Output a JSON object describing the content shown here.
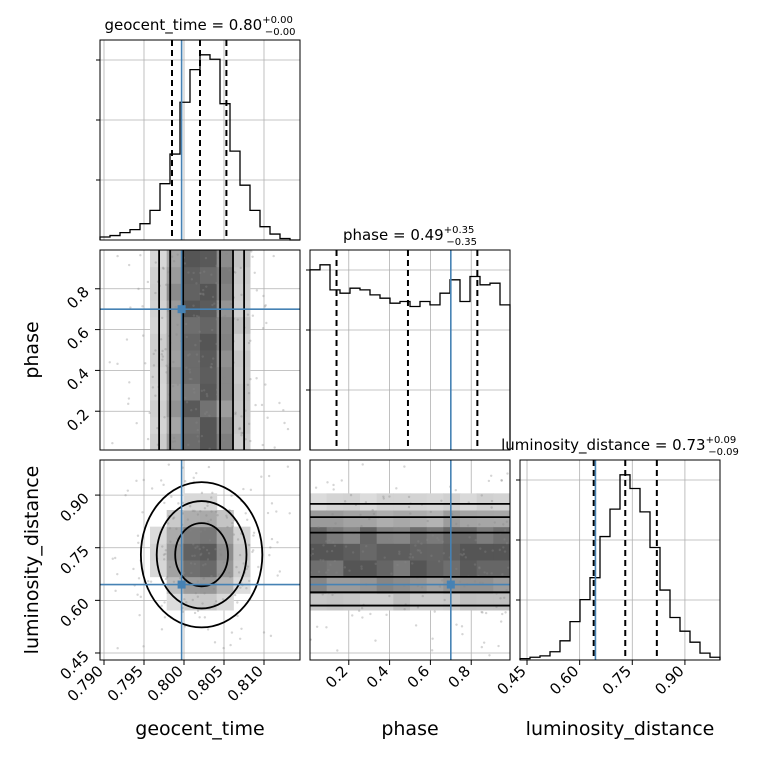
{
  "chart_data": {
    "type": "scatter",
    "subtype": "corner_plot",
    "parameters": [
      "geocent_time",
      "phase",
      "luminosity_distance"
    ],
    "axis_labels": {
      "geocent_time": "geocent_time",
      "phase": "phase",
      "luminosity_distance": "luminosity_distance"
    },
    "ranges": {
      "geocent_time": [
        0.7895,
        0.8145
      ],
      "phase": [
        0.01,
        0.99
      ],
      "luminosity_distance": [
        0.43,
        1.0
      ]
    },
    "tick_labels": {
      "geocent_time": [
        "0.790",
        "0.795",
        "0.800",
        "0.805",
        "0.810"
      ],
      "phase": [
        "0.2",
        "0.4",
        "0.6",
        "0.8"
      ],
      "luminosity_distance": [
        "0.45",
        "0.60",
        "0.75",
        "0.90"
      ]
    },
    "tick_values": {
      "geocent_time": [
        0.79,
        0.795,
        0.8,
        0.805,
        0.81
      ],
      "phase": [
        0.2,
        0.4,
        0.6,
        0.8
      ],
      "luminosity_distance": [
        0.45,
        0.6,
        0.75,
        0.9
      ]
    },
    "truths": {
      "geocent_time": 0.7997,
      "phase": 0.7,
      "luminosity_distance": 0.645
    },
    "quantiles": {
      "geocent_time": [
        0.7985,
        0.802,
        0.8053
      ],
      "phase": [
        0.14,
        0.49,
        0.83
      ],
      "luminosity_distance": [
        0.64,
        0.73,
        0.82
      ]
    },
    "titles": [
      {
        "param": "geocent_time",
        "main": "geocent_time = 0.80",
        "sup": "+0.00",
        "sub": "−0.00"
      },
      {
        "param": "phase",
        "main": "phase = 0.49",
        "sup": "+0.35",
        "sub": "−0.35"
      },
      {
        "param": "luminosity_distance",
        "main": "luminosity_distance = 0.73",
        "sup": "+0.09",
        "sub": "−0.09"
      }
    ],
    "histograms": {
      "geocent_time": {
        "bin_edges_start": 0.7895,
        "bin_width": 0.00125,
        "counts": [
          2,
          3,
          5,
          7,
          11,
          20,
          38,
          58,
          93,
          115,
          125,
          122,
          92,
          60,
          37,
          20,
          9,
          4,
          1,
          0
        ]
      },
      "phase": {
        "bin_edges_start": 0.01,
        "bin_width": 0.049,
        "counts": [
          108,
          111,
          96,
          94,
          97,
          96,
          93,
          91,
          88,
          89,
          86,
          89,
          87,
          94,
          102,
          89,
          104,
          99,
          100,
          87
        ]
      },
      "luminosity_distance": {
        "bin_edges_start": 0.43,
        "bin_width": 0.0285,
        "counts": [
          1,
          2,
          3,
          6,
          14,
          28,
          44,
          60,
          90,
          110,
          135,
          125,
          108,
          82,
          51,
          31,
          21,
          13,
          5,
          2
        ]
      }
    },
    "grid": true,
    "legend": "none"
  }
}
